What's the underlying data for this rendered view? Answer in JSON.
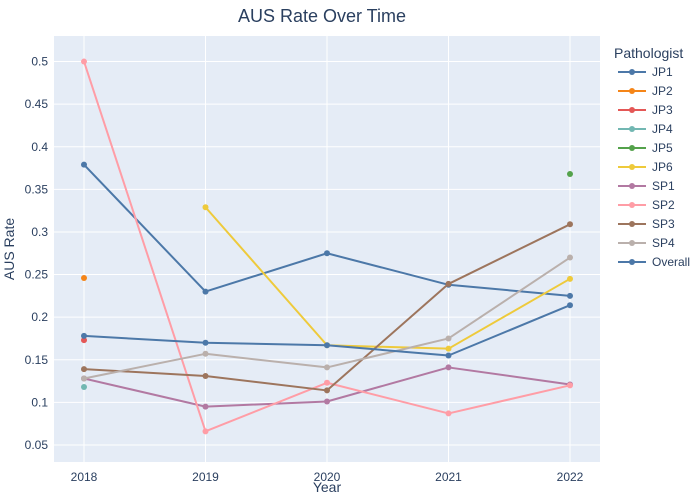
{
  "chart_data": {
    "type": "line",
    "title": "AUS Rate Over Time",
    "xlabel": "Year",
    "ylabel": "AUS Rate",
    "x": [
      2018,
      2019,
      2020,
      2021,
      2022
    ],
    "x_tick_labels": [
      "2018",
      "2019",
      "2020",
      "2021",
      "2022"
    ],
    "ylim": [
      0.03,
      0.53
    ],
    "y_ticks": [
      0.05,
      0.1,
      0.15,
      0.2,
      0.25,
      0.3,
      0.35,
      0.4,
      0.45,
      0.5
    ],
    "y_tick_labels": [
      "0.05",
      "0.1",
      "0.15",
      "0.2",
      "0.25",
      "0.3",
      "0.35",
      "0.4",
      "0.45",
      "0.5"
    ],
    "grid": true,
    "legend": {
      "title": "Pathologist",
      "placement": "right"
    },
    "series": [
      {
        "name": "JP1",
        "color": "#4c78a8",
        "values": [
          0.379,
          0.23,
          0.275,
          0.238,
          0.225
        ]
      },
      {
        "name": "JP2",
        "color": "#f58518",
        "values": [
          0.246,
          null,
          null,
          null,
          null
        ]
      },
      {
        "name": "JP3",
        "color": "#e45756",
        "values": [
          0.173,
          null,
          null,
          null,
          null
        ]
      },
      {
        "name": "JP4",
        "color": "#72b7b2",
        "values": [
          0.118,
          null,
          null,
          null,
          null
        ]
      },
      {
        "name": "JP5",
        "color": "#54a24b",
        "values": [
          null,
          null,
          null,
          null,
          0.368
        ]
      },
      {
        "name": "JP6",
        "color": "#eeca3b",
        "values": [
          null,
          0.329,
          0.167,
          0.163,
          0.245
        ]
      },
      {
        "name": "SP1",
        "color": "#b279a2",
        "values": [
          0.128,
          0.095,
          0.101,
          0.141,
          0.121
        ]
      },
      {
        "name": "SP2",
        "color": "#ff9da6",
        "values": [
          0.5,
          0.066,
          0.123,
          0.087,
          0.12
        ]
      },
      {
        "name": "SP3",
        "color": "#9d755d",
        "values": [
          0.139,
          0.131,
          0.114,
          0.239,
          0.309
        ]
      },
      {
        "name": "SP4",
        "color": "#bab0ac",
        "values": [
          0.128,
          0.157,
          0.141,
          0.175,
          0.27
        ]
      },
      {
        "name": "Overall",
        "color": "#4c78a8",
        "values": [
          0.178,
          0.17,
          0.167,
          0.155,
          0.214
        ]
      }
    ]
  }
}
